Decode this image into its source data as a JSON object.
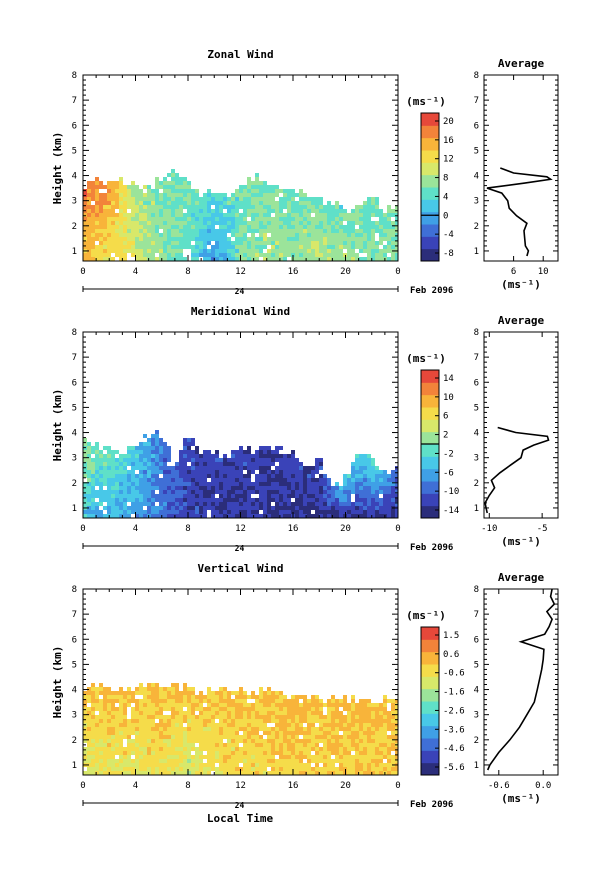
{
  "figure": {
    "xlabel": "Local Time",
    "x_ticks": [
      "0",
      "4",
      "8",
      "12",
      "16",
      "20",
      "0"
    ],
    "date_tick": "24",
    "date_label": "Feb 2096",
    "height_label": "Height (km)",
    "y_ticks": [
      "1",
      "2",
      "3",
      "4",
      "5",
      "6",
      "7",
      "8"
    ],
    "colorbar_unit": "(ms⁻¹)",
    "average_title": "Average",
    "average_unit": "(ms⁻¹)"
  },
  "colors": {
    "scale": [
      "#2b2d7a",
      "#3a43b8",
      "#3f6fd6",
      "#3fa0e6",
      "#48c8e8",
      "#5fe0c8",
      "#9be49a",
      "#d8e86a",
      "#f5dc4a",
      "#f8b43a",
      "#f2833a",
      "#e6483a"
    ],
    "no_data": "#ffffff"
  },
  "chart_data": [
    {
      "type": "heatmap",
      "title": "Zonal Wind",
      "x_range": [
        0,
        24
      ],
      "y_range": [
        0.6,
        8
      ],
      "colorbar_ticks": [
        "20",
        "16",
        "12",
        "8",
        "4",
        "0",
        "-4",
        "-8"
      ],
      "colorbar_range": [
        -10,
        22
      ],
      "zero_line": 0,
      "series": [
        {
          "name": "top_height_km",
          "x": [
            0,
            1,
            2,
            3,
            4,
            5,
            6,
            7,
            8,
            9,
            10,
            11,
            12,
            13,
            14,
            15,
            16,
            17,
            18,
            19,
            20,
            21,
            22,
            23,
            24
          ],
          "values": [
            3.85,
            3.9,
            3.7,
            3.75,
            3.6,
            3.5,
            3.9,
            4.2,
            3.7,
            3.2,
            3.5,
            3.1,
            3.6,
            3.9,
            3.75,
            3.6,
            3.4,
            3.3,
            3.0,
            2.9,
            2.5,
            2.9,
            3.3,
            2.6,
            3.0
          ]
        },
        {
          "name": "surface_value",
          "x": [
            0,
            2,
            4,
            6,
            8,
            10,
            12,
            14,
            16,
            18,
            20,
            22,
            24
          ],
          "values": [
            14,
            12,
            10,
            7,
            5,
            -2,
            6,
            8,
            7,
            9,
            8,
            7,
            6
          ]
        },
        {
          "name": "top_value",
          "x": [
            0,
            2,
            4,
            6,
            8,
            10,
            12,
            14,
            16,
            18,
            20,
            22,
            24
          ],
          "values": [
            20,
            16,
            8,
            6,
            6,
            4,
            5,
            6,
            6,
            5,
            5,
            5,
            6
          ]
        }
      ],
      "average": {
        "x_ticks": [
          "6",
          "10"
        ],
        "x_range": [
          2,
          12
        ],
        "height": [
          0.8,
          1.0,
          1.2,
          1.5,
          1.8,
          2.1,
          2.4,
          2.7,
          3.0,
          3.3,
          3.5,
          3.7,
          3.85,
          3.95,
          4.1,
          4.3
        ],
        "value": [
          7.8,
          8.0,
          7.6,
          7.5,
          7.4,
          7.8,
          6.4,
          5.4,
          5.2,
          4.4,
          2.4,
          7.5,
          11.0,
          10.5,
          6.0,
          4.2
        ]
      }
    },
    {
      "type": "heatmap",
      "title": "Meridional Wind",
      "x_range": [
        0,
        24
      ],
      "y_range": [
        0.6,
        8
      ],
      "colorbar_ticks": [
        "14",
        "10",
        "6",
        "2",
        "-2",
        "-6",
        "-10",
        "-14"
      ],
      "colorbar_range": [
        -16,
        17
      ],
      "zero_line": 0,
      "series": [
        {
          "name": "top_height_km",
          "x": [
            0,
            1,
            2,
            3,
            4,
            5,
            6,
            7,
            8,
            9,
            10,
            11,
            12,
            13,
            14,
            15,
            16,
            17,
            18,
            19,
            20,
            21,
            22,
            23,
            24
          ],
          "values": [
            3.9,
            3.5,
            3.3,
            3.0,
            3.7,
            3.8,
            3.9,
            2.7,
            3.9,
            3.2,
            3.3,
            3.0,
            3.5,
            3.3,
            3.6,
            3.4,
            3.1,
            2.7,
            2.9,
            1.8,
            2.2,
            3.3,
            3.0,
            2.4,
            2.8
          ]
        },
        {
          "name": "surface_value",
          "x": [
            0,
            2,
            4,
            6,
            8,
            10,
            12,
            14,
            16,
            18,
            20,
            22,
            24
          ],
          "values": [
            -4,
            -5,
            -6,
            -9,
            -12,
            -13,
            -13,
            -14,
            -14,
            -14,
            -14,
            -13,
            -13
          ]
        },
        {
          "name": "top_value",
          "x": [
            0,
            2,
            4,
            6,
            8,
            10,
            12,
            14,
            16,
            18,
            20,
            22,
            24
          ],
          "values": [
            2,
            0,
            -3,
            -8,
            -12,
            -12,
            -12,
            -13,
            -12,
            -12,
            -3,
            -2,
            -9
          ]
        }
      ],
      "average": {
        "x_ticks": [
          "-10",
          "-5"
        ],
        "x_range": [
          -10.5,
          -3.5
        ],
        "height": [
          0.8,
          1.0,
          1.2,
          1.5,
          1.8,
          2.1,
          2.4,
          2.7,
          3.0,
          3.3,
          3.5,
          3.7,
          3.85,
          4.0,
          4.2
        ],
        "value": [
          -10.2,
          -10.3,
          -10.4,
          -10.0,
          -9.5,
          -9.8,
          -9.0,
          -8.0,
          -7.0,
          -6.8,
          -5.8,
          -4.4,
          -4.5,
          -7.5,
          -9.2
        ]
      }
    },
    {
      "type": "heatmap",
      "title": "Vertical Wind",
      "x_range": [
        0,
        24
      ],
      "y_range": [
        0.6,
        8
      ],
      "colorbar_ticks": [
        "1.5",
        "0.6",
        "-0.6",
        "-1.6",
        "-2.6",
        "-3.6",
        "-4.6",
        "-5.6"
      ],
      "colorbar_range": [
        -6.2,
        2.0
      ],
      "zero_line": null,
      "series": [
        {
          "name": "top_height_km",
          "x": [
            0,
            1,
            2,
            3,
            4,
            5,
            6,
            7,
            8,
            9,
            10,
            11,
            12,
            13,
            14,
            15,
            16,
            17,
            18,
            19,
            20,
            21,
            22,
            23,
            24
          ],
          "values": [
            4.1,
            4.1,
            4.0,
            4.0,
            4.2,
            4.2,
            4.1,
            4.2,
            4.0,
            3.9,
            4.1,
            4.0,
            4.0,
            3.9,
            3.9,
            3.8,
            3.7,
            3.7,
            3.6,
            3.6,
            3.6,
            3.7,
            3.6,
            3.6,
            3.6
          ]
        },
        {
          "name": "surface_value",
          "x": [
            0,
            2,
            4,
            6,
            8,
            10,
            12,
            14,
            16,
            18,
            20,
            22,
            24
          ],
          "values": [
            -1.0,
            -0.6,
            -0.8,
            -0.6,
            -1.2,
            -0.6,
            -0.4,
            -0.4,
            -0.2,
            -0.2,
            -0.2,
            -0.2,
            -0.2
          ]
        },
        {
          "name": "top_value",
          "x": [
            0,
            2,
            4,
            6,
            8,
            10,
            12,
            14,
            16,
            18,
            20,
            22,
            24
          ],
          "values": [
            0.0,
            0.0,
            0.2,
            0.2,
            0.1,
            0.0,
            0.1,
            0.2,
            0.1,
            0.1,
            0.1,
            0.1,
            0.1
          ]
        }
      ],
      "average": {
        "x_ticks": [
          "-0.6",
          "0.0"
        ],
        "x_range": [
          -0.8,
          0.2
        ],
        "height": [
          0.8,
          1.0,
          1.5,
          2.0,
          2.5,
          3.0,
          3.5,
          4.0,
          4.4,
          4.8,
          5.2,
          5.6,
          5.9,
          6.2,
          6.5,
          6.8,
          7.1,
          7.4,
          7.7,
          8.0
        ],
        "value": [
          -0.75,
          -0.72,
          -0.6,
          -0.45,
          -0.32,
          -0.22,
          -0.12,
          -0.08,
          -0.05,
          -0.02,
          0.0,
          0.01,
          -0.3,
          0.02,
          0.08,
          0.12,
          0.05,
          0.15,
          0.1,
          0.12
        ]
      }
    }
  ]
}
